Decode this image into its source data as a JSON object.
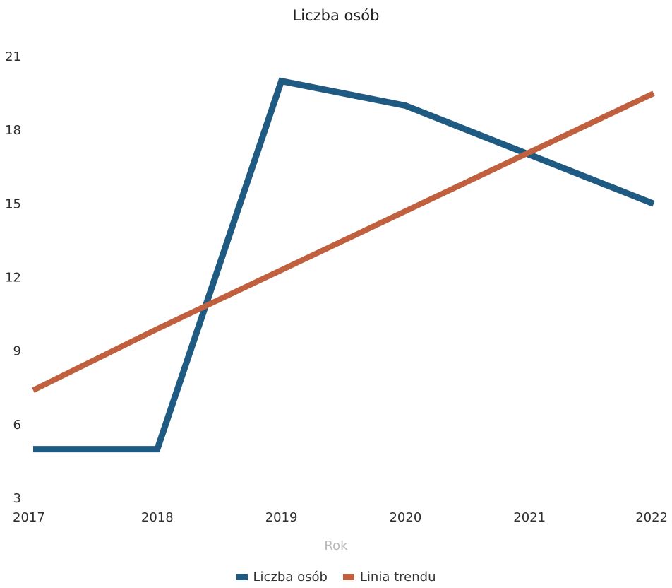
{
  "chart_data": {
    "type": "line",
    "title": "Liczba osób",
    "xlabel": "Rok",
    "ylabel": "",
    "x": [
      2017,
      2018,
      2019,
      2020,
      2021,
      2022
    ],
    "ylim": [
      3,
      21
    ],
    "yticks": [
      3,
      6,
      9,
      12,
      15,
      18,
      21
    ],
    "grid": false,
    "legend_position": "bottom",
    "series": [
      {
        "name": "Liczba osób",
        "color": "#1f5a82",
        "values": [
          5,
          5,
          20,
          19,
          17,
          15
        ]
      },
      {
        "name": "Linia trendu",
        "color": "#c0603f",
        "values": [
          7.4,
          9.9,
          12.3,
          14.7,
          17.1,
          19.5
        ]
      }
    ]
  }
}
